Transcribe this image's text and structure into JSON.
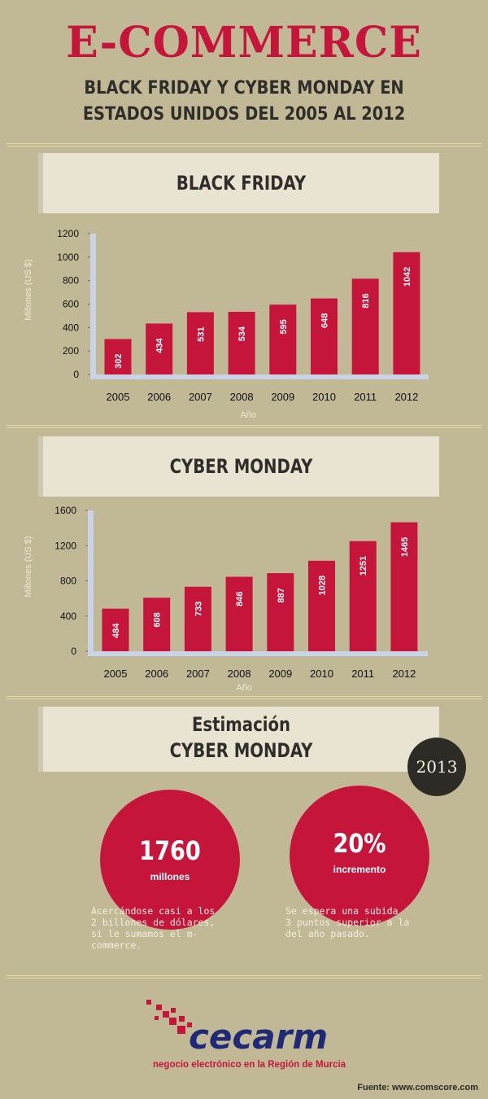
{
  "header": {
    "title": "E-COMMERCE",
    "subtitle_line1": "BLACK FRIDAY Y CYBER MONDAY EN",
    "subtitle_line2": "ESTADOS UNIDOS  DEL 2005 AL 2012"
  },
  "colors": {
    "background": "#c1b896",
    "accent": "#c6153b",
    "axis": "#cad2e6",
    "dark": "#2d2b25"
  },
  "chart_data": [
    {
      "type": "bar",
      "title": "BLACK FRIDAY",
      "categories": [
        "2005",
        "2006",
        "2007",
        "2008",
        "2009",
        "2010",
        "2011",
        "2012"
      ],
      "values": [
        302,
        434,
        531,
        534,
        595,
        648,
        816,
        1042
      ],
      "xlabel": "Año",
      "ylabel": "Millones (US $)",
      "ylim": [
        0,
        1200
      ],
      "yticks": [
        0,
        200,
        400,
        600,
        800,
        1000,
        1200
      ]
    },
    {
      "type": "bar",
      "title": "CYBER MONDAY",
      "categories": [
        "2005",
        "2006",
        "2007",
        "2008",
        "2009",
        "2010",
        "2011",
        "2012"
      ],
      "values": [
        484,
        608,
        733,
        846,
        887,
        1028,
        1251,
        1465
      ],
      "xlabel": "Año",
      "ylabel": "Millones (US $)",
      "ylim": [
        0,
        1600
      ],
      "yticks": [
        0,
        400,
        800,
        1200,
        1600
      ]
    }
  ],
  "estimate": {
    "title_line1": "Estimación",
    "title_line2": "CYBER MONDAY",
    "year": "2013",
    "left": {
      "value": "1760",
      "unit": "millones",
      "note": [
        "Acercándose casi a los",
        "2 billones de dólares,",
        "si le sumamos el m-",
        "commerce."
      ]
    },
    "right": {
      "value": "20%",
      "unit": "incremento",
      "note": [
        "Se espera una subida",
        "3 puntos superior a la",
        "del año pasado."
      ]
    }
  },
  "footer": {
    "brand": "cecarm",
    "tagline": "negocio electrónico en la Región de Murcia",
    "source": "Fuente: www.comscore.com"
  }
}
